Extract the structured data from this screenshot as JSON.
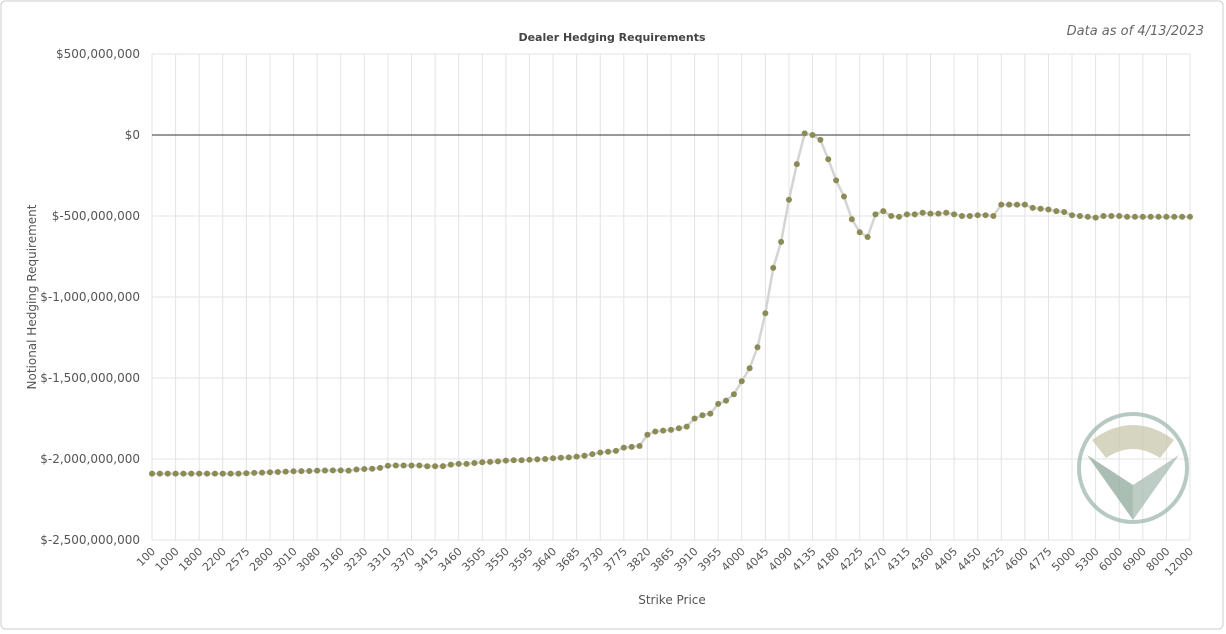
{
  "chart_data": {
    "type": "scatter-line",
    "title": "Dealer Hedging Requirements",
    "subtitle": "Data as of 4/13/2023",
    "x_label": "Strike Price",
    "y_label": "Notional Hedging Requirement",
    "color": "#8b8c55",
    "line_color": "#d4d4d4",
    "grid": true,
    "ylim": [
      -2500000000,
      500000000
    ],
    "yticks": [
      {
        "value": 500000000,
        "label": "$500,000,000"
      },
      {
        "value": 0,
        "label": "$0"
      },
      {
        "value": -500000000,
        "label": "$-500,000,000"
      },
      {
        "value": -1000000000,
        "label": "$-1,000,000,000"
      },
      {
        "value": -1500000000,
        "label": "$-1,500,000,000"
      },
      {
        "value": -2000000000,
        "label": "$-2,000,000,000"
      },
      {
        "value": -2500000000,
        "label": "$-2,500,000,000"
      }
    ],
    "categories": [
      "100",
      null,
      null,
      "1000",
      null,
      null,
      "1800",
      null,
      null,
      "2200",
      null,
      null,
      "2575",
      null,
      null,
      "2800",
      null,
      null,
      "3010",
      null,
      null,
      "3080",
      null,
      null,
      "3160",
      null,
      null,
      "3230",
      null,
      null,
      "3310",
      null,
      null,
      "3370",
      null,
      null,
      "3415",
      null,
      null,
      "3460",
      null,
      null,
      "3505",
      null,
      null,
      "3550",
      null,
      null,
      "3595",
      null,
      null,
      "3640",
      null,
      null,
      "3685",
      null,
      null,
      "3730",
      null,
      null,
      "3775",
      null,
      null,
      "3820",
      null,
      null,
      "3865",
      null,
      null,
      "3910",
      null,
      null,
      "3955",
      null,
      null,
      "4000",
      null,
      null,
      "4045",
      null,
      null,
      "4090",
      null,
      null,
      "4135",
      null,
      null,
      "4180",
      null,
      null,
      "4225",
      null,
      null,
      "4270",
      null,
      null,
      "4315",
      null,
      null,
      "4360",
      null,
      null,
      "4405",
      null,
      null,
      "4450",
      null,
      null,
      "4525",
      null,
      null,
      "4600",
      null,
      null,
      "4775",
      null,
      null,
      "5000",
      null,
      null,
      "5300",
      null,
      null,
      "6000",
      null,
      null,
      "6900",
      null,
      null,
      "8000",
      null,
      null,
      "12000"
    ],
    "values": [
      -2090000000,
      -2090000000,
      -2090000000,
      -2090000000,
      -2090000000,
      -2090000000,
      -2090000000,
      -2090000000,
      -2090000000,
      -2090000000,
      -2090000000,
      -2090000000,
      -2088000000,
      -2086000000,
      -2084000000,
      -2082000000,
      -2080000000,
      -2078000000,
      -2076000000,
      -2075000000,
      -2074000000,
      -2072000000,
      -2071000000,
      -2070000000,
      -2070000000,
      -2072000000,
      -2065000000,
      -2062000000,
      -2060000000,
      -2055000000,
      -2042000000,
      -2040000000,
      -2040000000,
      -2040000000,
      -2040000000,
      -2045000000,
      -2045000000,
      -2044000000,
      -2035000000,
      -2030000000,
      -2030000000,
      -2025000000,
      -2020000000,
      -2018000000,
      -2015000000,
      -2010000000,
      -2008000000,
      -2008000000,
      -2005000000,
      -2002000000,
      -2000000000,
      -1995000000,
      -1992000000,
      -1990000000,
      -1985000000,
      -1980000000,
      -1970000000,
      -1960000000,
      -1955000000,
      -1950000000,
      -1930000000,
      -1925000000,
      -1920000000,
      -1850000000,
      -1830000000,
      -1825000000,
      -1820000000,
      -1810000000,
      -1800000000,
      -1750000000,
      -1730000000,
      -1720000000,
      -1660000000,
      -1640000000,
      -1600000000,
      -1520000000,
      -1440000000,
      -1310000000,
      -1100000000,
      -820000000,
      -660000000,
      -400000000,
      -180000000,
      10000000,
      0,
      -30000000,
      -150000000,
      -280000000,
      -380000000,
      -520000000,
      -600000000,
      -630000000,
      -490000000,
      -470000000,
      -500000000,
      -505000000,
      -490000000,
      -490000000,
      -480000000,
      -485000000,
      -485000000,
      -480000000,
      -490000000,
      -500000000,
      -500000000,
      -495000000,
      -495000000,
      -500000000,
      -430000000,
      -430000000,
      -430000000,
      -430000000,
      -450000000,
      -455000000,
      -460000000,
      -470000000,
      -475000000,
      -495000000,
      -500000000,
      -505000000,
      -510000000,
      -500000000,
      -500000000,
      -500000000,
      -505000000,
      -505000000,
      -505000000,
      -505000000,
      -505000000,
      -505000000,
      -505000000,
      -505000000,
      -505000000
    ]
  }
}
